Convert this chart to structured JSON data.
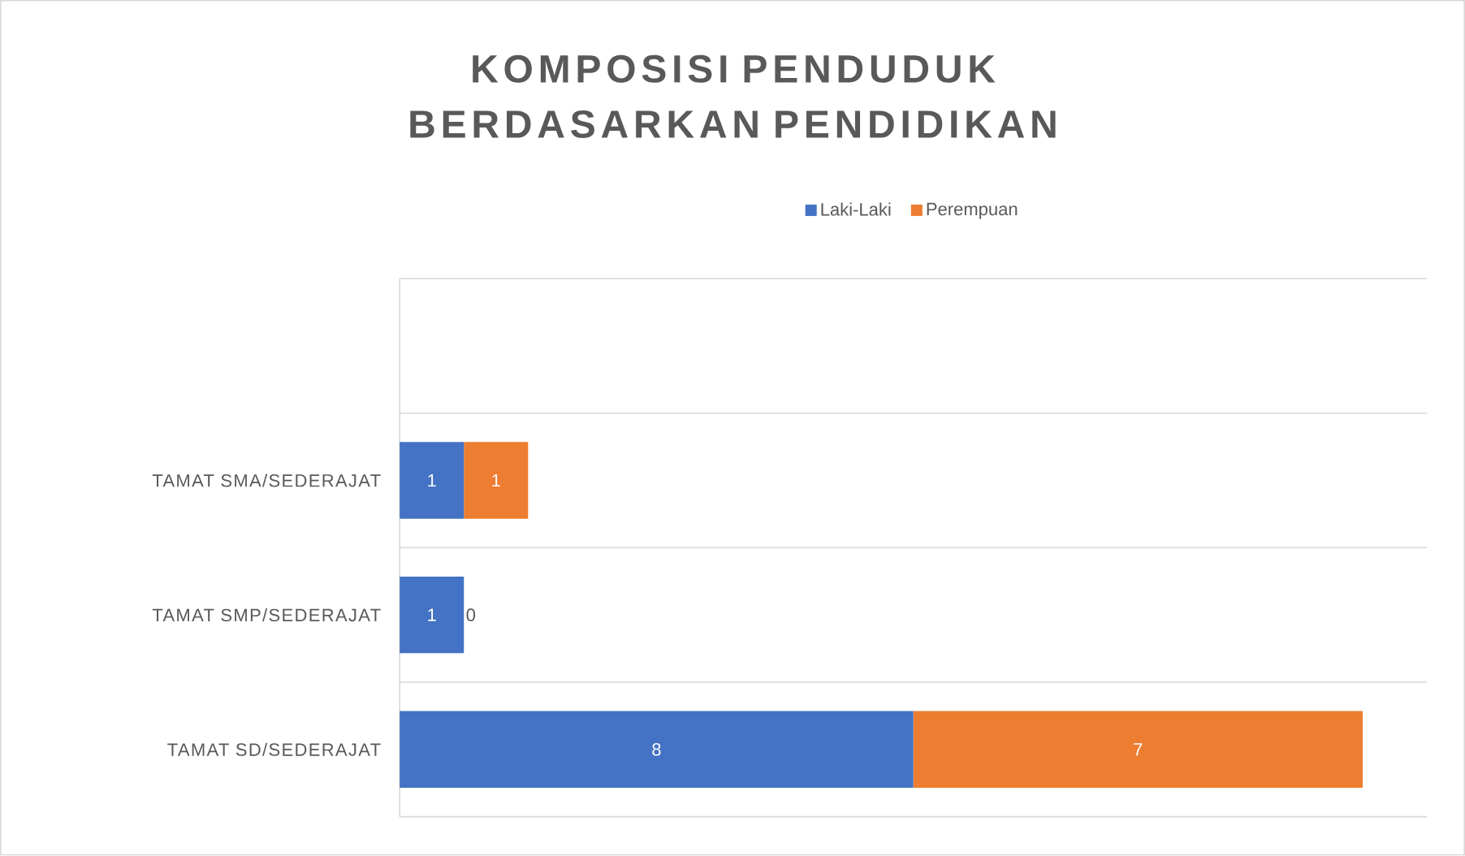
{
  "chart_data": {
    "type": "bar",
    "orientation": "horizontal",
    "stacked": true,
    "title": "KOMPOSISI PENDUDUK BERDASARKAN PENDIDIKAN",
    "categories": [
      null,
      "TAMAT SMA/SEDERAJAT",
      "TAMAT SMP/SEDERAJAT",
      "TAMAT SD/SEDERAJAT"
    ],
    "series": [
      {
        "name": "Laki-Laki",
        "color": "#4472c4",
        "values": [
          null,
          1,
          1,
          8
        ]
      },
      {
        "name": "Perempuan",
        "color": "#ed7d31",
        "values": [
          null,
          1,
          0,
          7
        ]
      }
    ],
    "data_labels": true,
    "legend": "top",
    "grid": "y",
    "tick_labels": "y"
  }
}
